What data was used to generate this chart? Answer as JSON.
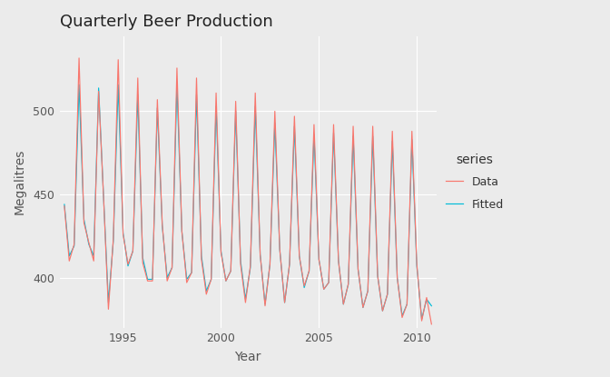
{
  "title": "Quarterly Beer Production",
  "xlabel": "Year",
  "ylabel": "Megalitres",
  "bg_color": "#EBEBEB",
  "grid_color": "#FFFFFF",
  "data_color": "#F8766D",
  "fitted_color": "#00BCD8",
  "legend_title": "series",
  "legend_labels": [
    "Data",
    "Fitted"
  ],
  "xlim": [
    1991.75,
    2011.0
  ],
  "ylim": [
    370,
    545
  ],
  "yticks": [
    400,
    450,
    500
  ],
  "xticks": [
    1995,
    2000,
    2005,
    2010
  ],
  "start_year": 1992.0,
  "data": [
    443,
    410,
    420,
    532,
    433,
    421,
    410,
    512,
    449,
    381,
    423,
    531,
    426,
    408,
    416,
    520,
    409,
    398,
    398,
    507,
    432,
    398,
    406,
    526,
    428,
    397,
    403,
    520,
    411,
    390,
    399,
    511,
    415,
    398,
    404,
    506,
    408,
    385,
    407,
    511,
    414,
    383,
    408,
    500,
    417,
    385,
    408,
    497,
    413,
    395,
    404,
    492,
    411,
    393,
    397,
    492,
    410,
    384,
    396,
    491,
    405,
    382,
    392,
    491,
    401,
    380,
    390,
    488,
    400,
    376,
    384,
    488,
    408,
    374,
    388,
    372
  ],
  "fitted": [
    444,
    413,
    419,
    516,
    435,
    420,
    413,
    514,
    449,
    385,
    422,
    516,
    427,
    407,
    416,
    510,
    412,
    399,
    399,
    502,
    431,
    400,
    406,
    516,
    428,
    399,
    403,
    510,
    413,
    392,
    399,
    503,
    416,
    398,
    404,
    500,
    410,
    387,
    406,
    503,
    414,
    384,
    408,
    493,
    417,
    385,
    408,
    491,
    413,
    394,
    404,
    486,
    411,
    393,
    397,
    487,
    410,
    384,
    396,
    485,
    405,
    382,
    392,
    485,
    401,
    380,
    390,
    482,
    400,
    377,
    384,
    483,
    407,
    375,
    387,
    383
  ]
}
